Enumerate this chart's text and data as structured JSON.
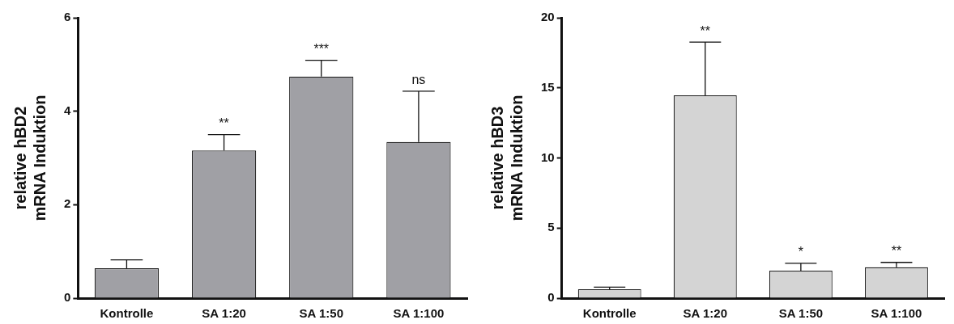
{
  "chart_data": [
    {
      "type": "bar",
      "ylabel": "relative hBD2\nmRNA Induktion",
      "categories": [
        "Kontrolle",
        "SA 1:20",
        "SA 1:50",
        "SA 1:100"
      ],
      "values": [
        0.64,
        3.16,
        4.74,
        3.34
      ],
      "errors": [
        [
          0.64,
          0.82
        ],
        [
          3.16,
          3.5
        ],
        [
          4.74,
          5.09
        ],
        [
          3.34,
          4.43
        ]
      ],
      "color": "#a0a0a5",
      "ylim": [
        0,
        6
      ],
      "yticks": [
        0,
        2,
        4,
        6
      ],
      "grid": false,
      "legend": false,
      "annotations": [
        {
          "text": "**",
          "x": "SA 1:20",
          "y": 3.5
        },
        {
          "text": "***",
          "x": "SA 1:50",
          "y": 5.09
        },
        {
          "text": "ns",
          "x": "SA 1:100",
          "y": 4.43
        }
      ]
    },
    {
      "type": "bar",
      "ylabel": "relative hBD3\nmRNA Induktion",
      "categories": [
        "Kontrolle",
        "SA 1:20",
        "SA 1:50",
        "SA 1:100"
      ],
      "values": [
        0.64,
        14.47,
        1.96,
        2.2
      ],
      "errors": [
        [
          0.64,
          0.79
        ],
        [
          14.47,
          18.26
        ],
        [
          1.96,
          2.49
        ],
        [
          2.2,
          2.55
        ]
      ],
      "color": "#d4d4d4",
      "ylim": [
        0,
        20
      ],
      "yticks": [
        0,
        5,
        10,
        15,
        20
      ],
      "grid": false,
      "legend": false,
      "annotations": [
        {
          "text": "**",
          "x": "SA 1:20",
          "y": 18.26
        },
        {
          "text": "*",
          "x": "SA 1:50",
          "y": 2.49
        },
        {
          "text": "**",
          "x": "SA 1:100",
          "y": 2.55
        }
      ]
    }
  ]
}
